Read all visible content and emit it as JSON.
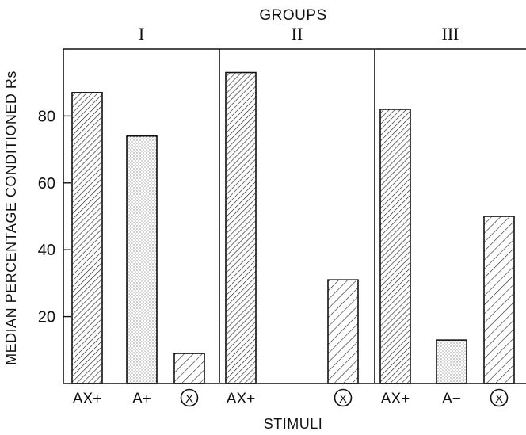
{
  "chart_data": {
    "type": "bar",
    "title": "GROUPS",
    "xlabel": "STIMULI",
    "ylabel": "MEDIAN PERCENTAGE CONDITIONED Rs",
    "ylim": [
      0,
      100
    ],
    "yticks": [
      20,
      40,
      60,
      80
    ],
    "groups": [
      {
        "name": "I",
        "bars": [
          {
            "category": "AX+",
            "value": 87,
            "pattern": "dense-hatch"
          },
          {
            "category": "A+",
            "value": 74,
            "pattern": "stipple"
          },
          {
            "category": "X",
            "circled": true,
            "value": 9,
            "pattern": "hatch"
          }
        ]
      },
      {
        "name": "II",
        "bars": [
          {
            "category": "AX+",
            "value": 93,
            "pattern": "dense-hatch"
          },
          {
            "category": "",
            "value": null,
            "pattern": "none"
          },
          {
            "category": "X",
            "circled": true,
            "value": 31,
            "pattern": "hatch"
          }
        ]
      },
      {
        "name": "III",
        "bars": [
          {
            "category": "AX+",
            "value": 82,
            "pattern": "dense-hatch"
          },
          {
            "category": "A−",
            "value": 13,
            "pattern": "stipple"
          },
          {
            "category": "X",
            "circled": true,
            "value": 50,
            "pattern": "hatch"
          }
        ]
      }
    ],
    "grid": false,
    "legend": "none"
  }
}
